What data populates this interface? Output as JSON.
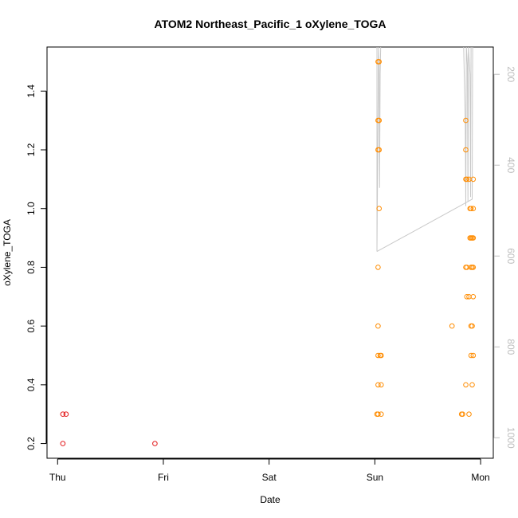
{
  "chart_data": {
    "type": "scatter",
    "title": "ATOM2 Northeast_Pacific_1 oXylene_TOGA",
    "xlabel": "Date",
    "ylabel": "oXylene_TOGA",
    "x_ticks": [
      {
        "day": 0,
        "label": "Thu"
      },
      {
        "day": 1,
        "label": "Fri"
      },
      {
        "day": 2,
        "label": "Sat"
      },
      {
        "day": 3,
        "label": "Sun"
      },
      {
        "day": 4,
        "label": "Mon"
      }
    ],
    "xlim": [
      -0.1,
      4.12
    ],
    "ylim": [
      0.15,
      1.55
    ],
    "y_ticks": [
      0.2,
      0.4,
      0.6,
      0.8,
      1.0,
      1.2,
      1.4
    ],
    "y_tick_labels": [
      "0.2",
      "0.4",
      "0.6",
      "0.8",
      "1.0",
      "1.2",
      "1.4"
    ],
    "right_axis": {
      "ylim": [
        1045,
        140
      ],
      "ticks": [
        200,
        400,
        600,
        800,
        1000
      ],
      "tick_labels": [
        "200",
        "400",
        "600",
        "800",
        "1000"
      ],
      "color": "#bdbdbd"
    },
    "series": [
      {
        "color": "#e31a1c",
        "points": [
          [
            0.05,
            0.3
          ],
          [
            0.08,
            0.3
          ],
          [
            0.05,
            0.2
          ],
          [
            0.92,
            0.2
          ]
        ]
      },
      {
        "color": "#ff8c00",
        "points": [
          [
            3.03,
            1.5
          ],
          [
            3.04,
            1.5
          ],
          [
            3.03,
            1.3
          ],
          [
            3.04,
            1.3
          ],
          [
            3.03,
            1.2
          ],
          [
            3.04,
            1.2
          ],
          [
            3.04,
            1.0
          ],
          [
            3.03,
            0.8
          ],
          [
            3.03,
            0.6
          ],
          [
            3.03,
            0.5
          ],
          [
            3.05,
            0.5
          ],
          [
            3.06,
            0.5
          ],
          [
            3.03,
            0.4
          ],
          [
            3.06,
            0.4
          ],
          [
            3.02,
            0.3
          ],
          [
            3.03,
            0.3
          ],
          [
            3.06,
            0.3
          ],
          [
            3.73,
            0.6
          ],
          [
            3.82,
            0.3
          ],
          [
            3.83,
            0.3
          ],
          [
            3.86,
            1.3
          ],
          [
            3.86,
            1.2
          ],
          [
            3.86,
            1.1
          ],
          [
            3.87,
            1.1
          ],
          [
            3.86,
            0.8
          ],
          [
            3.87,
            0.8
          ],
          [
            3.87,
            0.7
          ],
          [
            3.86,
            0.4
          ],
          [
            3.89,
            0.3
          ],
          [
            3.89,
            1.1
          ],
          [
            3.93,
            1.1
          ],
          [
            3.9,
            1.0
          ],
          [
            3.91,
            1.0
          ],
          [
            3.93,
            1.0
          ],
          [
            3.9,
            0.9
          ],
          [
            3.91,
            0.9
          ],
          [
            3.92,
            0.9
          ],
          [
            3.93,
            0.9
          ],
          [
            3.91,
            0.8
          ],
          [
            3.92,
            0.8
          ],
          [
            3.93,
            0.8
          ],
          [
            3.89,
            0.7
          ],
          [
            3.93,
            0.7
          ],
          [
            3.91,
            0.6
          ],
          [
            3.92,
            0.6
          ],
          [
            3.91,
            0.5
          ],
          [
            3.93,
            0.5
          ],
          [
            3.92,
            0.4
          ]
        ]
      }
    ],
    "altitude_line": {
      "color": "#c8c8c8",
      "y_axis": "right",
      "segments": [
        [
          [
            3.02,
            140
          ],
          [
            3.02,
            590
          ],
          [
            3.035,
            140
          ],
          [
            3.04,
            180
          ],
          [
            3.045,
            450
          ],
          [
            3.05,
            200
          ],
          [
            3.055,
            140
          ]
        ],
        [
          [
            3.02,
            590
          ],
          [
            3.92,
            475
          ],
          [
            3.925,
            140
          ]
        ],
        [
          [
            3.84,
            140
          ],
          [
            3.855,
            300
          ],
          [
            3.86,
            490
          ],
          [
            3.865,
            140
          ],
          [
            3.875,
            180
          ],
          [
            3.88,
            480
          ],
          [
            3.885,
            140
          ],
          [
            3.9,
            200
          ],
          [
            3.905,
            470
          ],
          [
            3.91,
            140
          ]
        ]
      ]
    }
  }
}
